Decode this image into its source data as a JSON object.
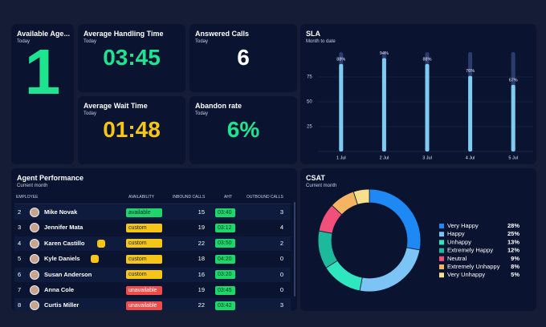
{
  "kpis": [
    {
      "title": "Available Age...",
      "subtitle": "Today",
      "value": "1",
      "color": "#1ee38f"
    },
    {
      "title": "Average Handling Time",
      "subtitle": "Today",
      "value": "03:45",
      "color": "#1ee38f"
    },
    {
      "title": "Answered Calls",
      "subtitle": "Today",
      "value": "6",
      "color": "#ffffff"
    },
    {
      "title": "Average Wait Time",
      "subtitle": "Today",
      "value": "01:48",
      "color": "#f5c518"
    },
    {
      "title": "Abandon rate",
      "subtitle": "Today",
      "value": "6%",
      "color": "#1ee38f"
    }
  ],
  "table": {
    "title": "Agent Performance",
    "subtitle": "Current month",
    "columns": [
      "EMPLOYEE",
      "AVAILABILITY",
      "INBOUND CALLS",
      "AHT",
      "OUTBOUND CALLS"
    ],
    "rows": [
      {
        "rank": 2,
        "name": "Mike Novak",
        "availability": "available",
        "badge_color": "#1fd66a",
        "inbound": 15,
        "aht": "03:40",
        "outbound": 3
      },
      {
        "rank": 3,
        "name": "Jennifer Mata",
        "availability": "custom",
        "badge_color": "#f5c518",
        "inbound": 19,
        "aht": "03:12",
        "outbound": 4
      },
      {
        "rank": 4,
        "name": "Karen Castillo",
        "availability": "custom",
        "badge_color": "#f5c518",
        "inbound": 22,
        "aht": "03:50",
        "outbound": 2,
        "badge_icon": true
      },
      {
        "rank": 5,
        "name": "Kyle Daniels",
        "availability": "custom",
        "badge_color": "#f5c518",
        "inbound": 18,
        "aht": "04:20",
        "outbound": 0,
        "badge_icon": true
      },
      {
        "rank": 6,
        "name": "Susan Anderson",
        "availability": "custom",
        "badge_color": "#f5c518",
        "inbound": 16,
        "aht": "03:20",
        "outbound": 0
      },
      {
        "rank": 7,
        "name": "Anna Cole",
        "availability": "unavailable",
        "badge_color": "#f04a4a",
        "inbound": 19,
        "aht": "03:45",
        "outbound": 0
      },
      {
        "rank": 8,
        "name": "Curtis Miller",
        "availability": "unavailable",
        "badge_color": "#f04a4a",
        "inbound": 22,
        "aht": "03:42",
        "outbound": 3
      }
    ]
  },
  "chart_data": [
    {
      "type": "bar",
      "title": "SLA",
      "subtitle": "Month to date",
      "categories": [
        "1 Jul",
        "2 Jul",
        "3 Jul",
        "4 Jul",
        "5 Jul"
      ],
      "values": [
        88,
        94,
        88,
        76,
        67
      ],
      "value_labels": [
        "88%",
        "94%",
        "88%",
        "76%",
        "67%"
      ],
      "color": "#7ecbf2",
      "track_color": "#2b3b70",
      "ylim": [
        0,
        100
      ],
      "yticks": [
        25,
        50,
        75
      ],
      "grid": true
    },
    {
      "type": "donut",
      "title": "CSAT",
      "subtitle": "Current month",
      "categories": [
        "Very Happy",
        "Happy",
        "Unhappy",
        "Extremely Happy",
        "Neutral",
        "Extremely Unhappy",
        "Very Unhappy"
      ],
      "values": [
        28,
        25,
        13,
        12,
        9,
        8,
        5
      ],
      "value_labels": [
        "28%",
        "25%",
        "13%",
        "12%",
        "9%",
        "8%",
        "5%"
      ],
      "colors": [
        "#1e88f5",
        "#7cc4f5",
        "#2ee6c0",
        "#1cb99c",
        "#f0507a",
        "#f5b461",
        "#f8e08a"
      ]
    }
  ]
}
